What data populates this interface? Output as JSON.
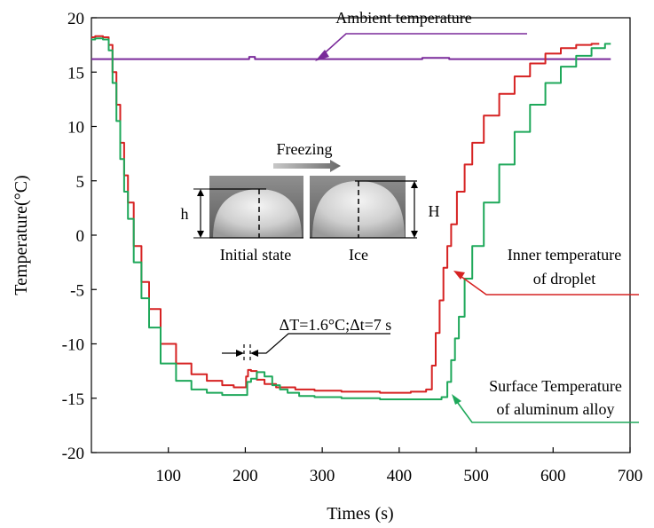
{
  "chart_data": {
    "type": "line",
    "xlabel": "Times (s)",
    "ylabel": "Temperature(°C)",
    "xlim": [
      0,
      700
    ],
    "ylim": [
      -20,
      20
    ],
    "x_ticks": [
      "100",
      "200",
      "300",
      "400",
      "500",
      "600",
      "700"
    ],
    "y_ticks": [
      "20",
      "15",
      "10",
      "5",
      "0",
      "-5",
      "-10",
      "-15",
      "-20"
    ],
    "grid": false,
    "series": [
      {
        "name": "Ambient temperature",
        "color": "#7a2a9a",
        "x": [
          0,
          20,
          100,
          200,
          210,
          215,
          300,
          400,
          460,
          470,
          500,
          600,
          675
        ],
        "y": [
          16.2,
          16.2,
          16.2,
          16.2,
          16.4,
          16.2,
          16.2,
          16.2,
          16.3,
          16.2,
          16.2,
          16.2,
          16.2
        ]
      },
      {
        "name": "Inner temperature of droplet",
        "color": "#d62222",
        "x": [
          0,
          10,
          20,
          25,
          30,
          35,
          40,
          45,
          50,
          60,
          70,
          80,
          100,
          120,
          140,
          160,
          180,
          190,
          200,
          202,
          205,
          210,
          220,
          230,
          250,
          280,
          300,
          350,
          400,
          430,
          440,
          445,
          450,
          455,
          460,
          465,
          470,
          480,
          490,
          500,
          520,
          540,
          560,
          580,
          600,
          620,
          640,
          660
        ],
        "y": [
          18.2,
          18.3,
          18.2,
          17.5,
          15.0,
          12.0,
          8.5,
          5.5,
          3.0,
          -1.0,
          -4.3,
          -6.8,
          -10.0,
          -11.8,
          -12.8,
          -13.4,
          -13.8,
          -14.0,
          -14.0,
          -13.0,
          -12.4,
          -12.5,
          -13.3,
          -13.7,
          -14.0,
          -14.2,
          -14.3,
          -14.4,
          -14.5,
          -14.4,
          -14.2,
          -12.0,
          -9.0,
          -6.0,
          -3.0,
          -1.0,
          1.0,
          4.0,
          6.5,
          8.5,
          11.0,
          13.0,
          14.6,
          15.8,
          16.7,
          17.2,
          17.5,
          17.6
        ]
      },
      {
        "name": "Surface Temperature of aluminum alloy",
        "color": "#1ea85a",
        "x": [
          0,
          10,
          20,
          25,
          30,
          35,
          40,
          45,
          50,
          60,
          70,
          80,
          100,
          120,
          140,
          160,
          180,
          200,
          205,
          210,
          220,
          230,
          240,
          250,
          260,
          280,
          300,
          350,
          400,
          450,
          460,
          465,
          470,
          475,
          480,
          490,
          500,
          520,
          540,
          560,
          580,
          600,
          620,
          640,
          660,
          675
        ],
        "y": [
          18.0,
          18.1,
          18.0,
          17.0,
          14.0,
          10.5,
          7.0,
          4.0,
          1.5,
          -2.5,
          -5.8,
          -8.5,
          -11.8,
          -13.4,
          -14.2,
          -14.5,
          -14.7,
          -14.7,
          -13.5,
          -13.2,
          -12.6,
          -13.0,
          -13.8,
          -14.2,
          -14.5,
          -14.8,
          -14.9,
          -15.0,
          -15.1,
          -15.1,
          -14.9,
          -13.5,
          -11.5,
          -9.5,
          -7.5,
          -4.0,
          -1.0,
          3.0,
          6.5,
          9.5,
          12.0,
          14.0,
          15.5,
          16.5,
          17.2,
          17.6
        ]
      }
    ],
    "annotations": {
      "ambient": "Ambient temperature",
      "inner_line1": "Inner temperature",
      "inner_line2": "of droplet",
      "surface_line1": "Surface Temperature",
      "surface_line2": "of aluminum alloy",
      "delta": "ΔT=1.6°C;Δt=7 s",
      "freezing": "Freezing",
      "initial_state": "Initial state",
      "ice": "Ice",
      "h": "h",
      "H": "H"
    }
  }
}
